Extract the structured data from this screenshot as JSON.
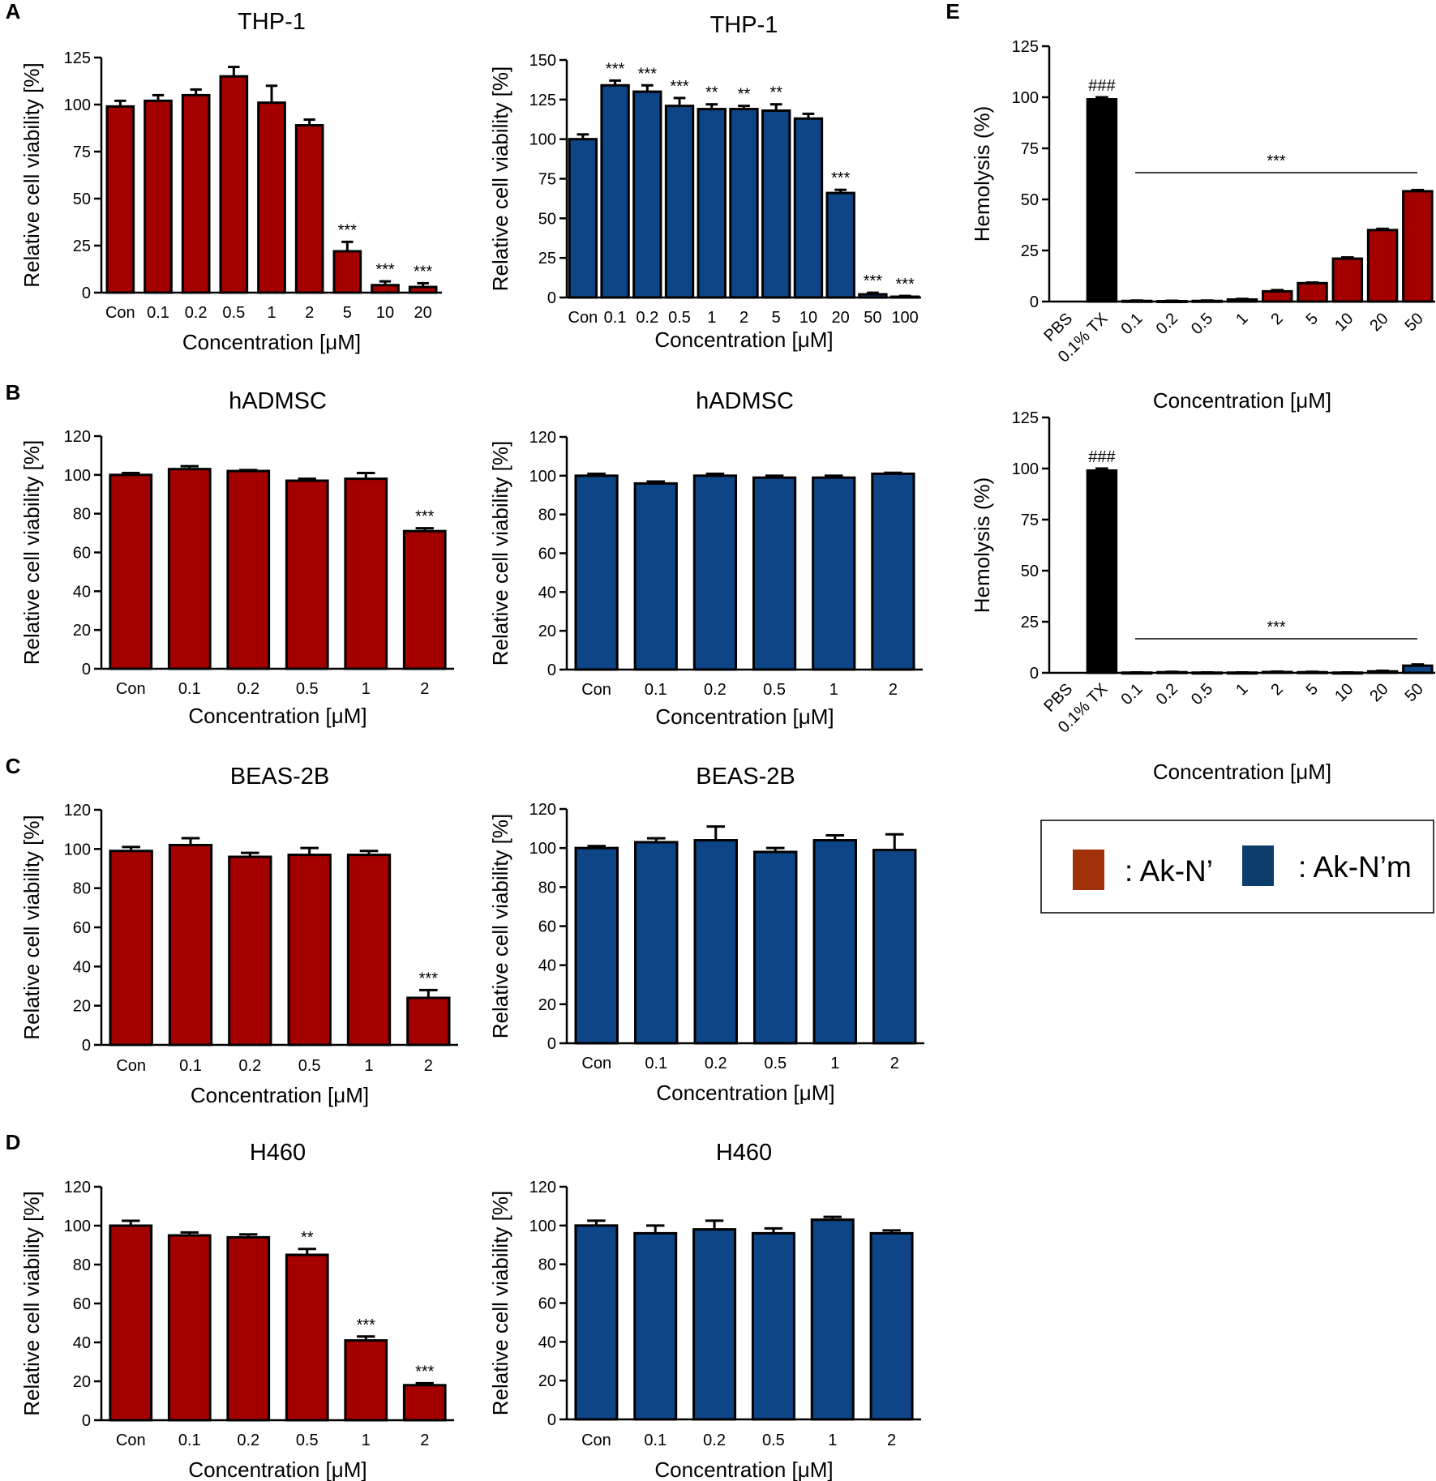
{
  "colors": {
    "red": "#a50000",
    "blue": "#0d4586",
    "black": "#000000",
    "legend_red": "#a0300a",
    "legend_blue": "#0c3d6c"
  },
  "panel_letters": [
    "A",
    "B",
    "C",
    "D",
    "E"
  ],
  "legend": {
    "items": [
      {
        "label": ": Ak-N’",
        "color": "legend_red"
      },
      {
        "label": ": Ak-N’m",
        "color": "legend_blue"
      }
    ]
  },
  "chart_data": [
    {
      "id": "A1",
      "type": "bar",
      "title": "THP-1",
      "xlabel": "Concentration [μM]",
      "ylabel": "Relative cell viability [%]",
      "color": "red",
      "ylim": [
        0,
        125
      ],
      "yticks": [
        0,
        25,
        50,
        75,
        100,
        125
      ],
      "categories": [
        "Con",
        "0.1",
        "0.2",
        "0.5",
        "1",
        "2",
        "5",
        "10",
        "20"
      ],
      "values": [
        99,
        102,
        105,
        115,
        101,
        89,
        22,
        4,
        3
      ],
      "errors": [
        3,
        3,
        3,
        5,
        9,
        3,
        5,
        2,
        2
      ],
      "annotations": [
        "",
        "",
        "",
        "",
        "",
        "",
        "***",
        "***",
        "***"
      ]
    },
    {
      "id": "A2",
      "type": "bar",
      "title": "THP-1",
      "xlabel": "Concentration [μM]",
      "ylabel": "Relative cell viability [%]",
      "color": "blue",
      "ylim": [
        0,
        150
      ],
      "yticks": [
        0,
        25,
        50,
        75,
        100,
        125,
        150
      ],
      "categories": [
        "Con",
        "0.1",
        "0.2",
        "0.5",
        "1",
        "2",
        "5",
        "10",
        "20",
        "50",
        "100"
      ],
      "values": [
        100,
        134,
        130,
        121,
        119,
        119,
        118,
        113,
        66,
        2,
        0.5
      ],
      "errors": [
        3,
        3,
        4,
        5,
        3,
        2,
        4,
        3,
        2,
        1,
        0.5
      ],
      "annotations": [
        "",
        "***",
        "***",
        "***",
        "**",
        "**",
        "**",
        "",
        "***",
        "***",
        "***"
      ]
    },
    {
      "id": "B1",
      "type": "bar",
      "title": "hADMSC",
      "xlabel": "Concentration [μM]",
      "ylabel": "Relative cell viability [%]",
      "color": "red",
      "ylim": [
        0,
        120
      ],
      "yticks": [
        0,
        20,
        40,
        60,
        80,
        100,
        120
      ],
      "categories": [
        "Con",
        "0.1",
        "0.2",
        "0.5",
        "1",
        "2"
      ],
      "values": [
        100,
        103,
        102,
        97,
        98,
        71
      ],
      "errors": [
        1,
        1.5,
        0.5,
        1,
        3,
        1.5
      ],
      "annotations": [
        "",
        "",
        "",
        "",
        "",
        "***"
      ]
    },
    {
      "id": "B2",
      "type": "bar",
      "title": "hADMSC",
      "xlabel": "Concentration [μM]",
      "ylabel": "Relative cell viability [%]",
      "color": "blue",
      "ylim": [
        0,
        120
      ],
      "yticks": [
        0,
        20,
        40,
        60,
        80,
        100,
        120
      ],
      "categories": [
        "Con",
        "0.1",
        "0.2",
        "0.5",
        "1",
        "2"
      ],
      "values": [
        100,
        96,
        100,
        99,
        99,
        101
      ],
      "errors": [
        1,
        1,
        1,
        1,
        1,
        0.5
      ],
      "annotations": [
        "",
        "",
        "",
        "",
        "",
        ""
      ]
    },
    {
      "id": "C1",
      "type": "bar",
      "title": "BEAS-2B",
      "xlabel": "Concentration [μM]",
      "ylabel": "Relative cell viability [%]",
      "color": "red",
      "ylim": [
        0,
        120
      ],
      "yticks": [
        0,
        20,
        40,
        60,
        80,
        100,
        120
      ],
      "categories": [
        "Con",
        "0.1",
        "0.2",
        "0.5",
        "1",
        "2"
      ],
      "values": [
        99,
        102,
        96,
        97,
        97,
        24
      ],
      "errors": [
        2,
        3.5,
        2,
        3.5,
        2,
        4
      ],
      "annotations": [
        "",
        "",
        "",
        "",
        "",
        "***"
      ]
    },
    {
      "id": "C2",
      "type": "bar",
      "title": "BEAS-2B",
      "xlabel": "Concentration [μM]",
      "ylabel": "Relative cell viability [%]",
      "color": "blue",
      "ylim": [
        0,
        120
      ],
      "yticks": [
        0,
        20,
        40,
        60,
        80,
        100,
        120
      ],
      "categories": [
        "Con",
        "0.1",
        "0.2",
        "0.5",
        "1",
        "2"
      ],
      "values": [
        100,
        103,
        104,
        98,
        104,
        99
      ],
      "errors": [
        1,
        2,
        7,
        2,
        2.5,
        8
      ],
      "annotations": [
        "",
        "",
        "",
        "",
        "",
        ""
      ]
    },
    {
      "id": "D1",
      "type": "bar",
      "title": "H460",
      "xlabel": "Concentration [μM]",
      "ylabel": "Relative cell viability [%]",
      "color": "red",
      "ylim": [
        0,
        120
      ],
      "yticks": [
        0,
        20,
        40,
        60,
        80,
        100,
        120
      ],
      "categories": [
        "Con",
        "0.1",
        "0.2",
        "0.5",
        "1",
        "2"
      ],
      "values": [
        100,
        95,
        94,
        85,
        41,
        18
      ],
      "errors": [
        2.5,
        1.5,
        1.5,
        3,
        2,
        1
      ],
      "annotations": [
        "",
        "",
        "",
        "**",
        "***",
        "***"
      ]
    },
    {
      "id": "D2",
      "type": "bar",
      "title": "H460",
      "xlabel": "Concentration [μM]",
      "ylabel": "Relative cell viability [%]",
      "color": "blue",
      "ylim": [
        0,
        120
      ],
      "yticks": [
        0,
        20,
        40,
        60,
        80,
        100,
        120
      ],
      "categories": [
        "Con",
        "0.1",
        "0.2",
        "0.5",
        "1",
        "2"
      ],
      "values": [
        100,
        96,
        98,
        96,
        103,
        96
      ],
      "errors": [
        2.5,
        4,
        4.5,
        2.5,
        1.5,
        1.5
      ],
      "annotations": [
        "",
        "",
        "",
        "",
        "",
        ""
      ]
    },
    {
      "id": "E1",
      "type": "bar",
      "title": "",
      "xlabel": "Concentration [μM]",
      "ylabel": "Hemolysis (%)",
      "ylim": [
        0,
        125
      ],
      "yticks": [
        0,
        25,
        50,
        75,
        100,
        125
      ],
      "categories": [
        "PBS",
        "0.1% TX",
        "0.1",
        "0.2",
        "0.5",
        "1",
        "2",
        "5",
        "10",
        "20",
        "50"
      ],
      "values": [
        0,
        99,
        0.3,
        0.2,
        0.3,
        1,
        5,
        9,
        21,
        35,
        54
      ],
      "errors": [
        0,
        1,
        0.2,
        0.2,
        0.2,
        0.3,
        0.6,
        0.3,
        0.6,
        0.6,
        0.6
      ],
      "bar_colors": [
        "black",
        "black",
        "red",
        "red",
        "red",
        "red",
        "red",
        "red",
        "red",
        "red",
        "red"
      ],
      "annotations": [
        "",
        "###",
        "",
        "",
        "",
        "",
        "",
        "",
        "",
        "",
        ""
      ],
      "bracket_label": "***"
    },
    {
      "id": "E2",
      "type": "bar",
      "title": "",
      "xlabel": "Concentration [μM]",
      "ylabel": "Hemolysis (%)",
      "ylim": [
        0,
        125
      ],
      "yticks": [
        0,
        25,
        50,
        75,
        100,
        125
      ],
      "categories": [
        "PBS",
        "0.1% TX",
        "0.1",
        "0.2",
        "0.5",
        "1",
        "2",
        "5",
        "10",
        "20",
        "50"
      ],
      "values": [
        0,
        99,
        0.1,
        0.3,
        0.1,
        0.1,
        0.4,
        0.3,
        0.1,
        0.7,
        3.5
      ],
      "errors": [
        0,
        1,
        0.1,
        0.2,
        0.1,
        0.1,
        0.2,
        0.2,
        0.1,
        0.3,
        0.6
      ],
      "bar_colors": [
        "black",
        "black",
        "blue",
        "blue",
        "blue",
        "blue",
        "blue",
        "blue",
        "blue",
        "blue",
        "blue"
      ],
      "annotations": [
        "",
        "###",
        "",
        "",
        "",
        "",
        "",
        "",
        "",
        "",
        ""
      ],
      "bracket_label": "***"
    }
  ]
}
